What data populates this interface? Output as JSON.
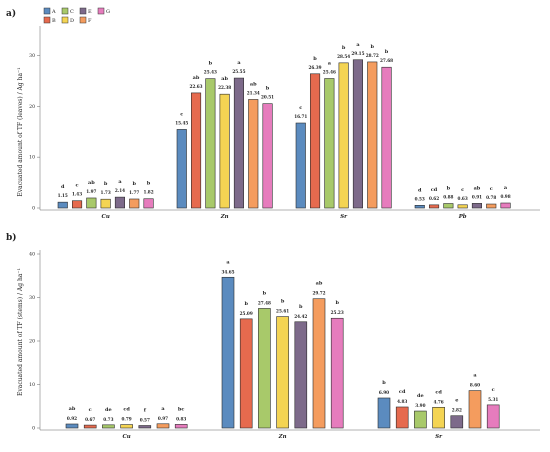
{
  "colors": {
    "A": "#5b8bbf",
    "B": "#e66a4e",
    "C": "#a8c96a",
    "D": "#f4d453",
    "E": "#7d6a8a",
    "F": "#f49c5e",
    "G": "#e67cbd"
  },
  "legend": [
    "A",
    "B",
    "C",
    "D",
    "E",
    "F",
    "G"
  ],
  "chart_data": [
    {
      "type": "bar",
      "panel_label": "a)",
      "ylabel": "Evacuated amount of TF (leaves) / Ag ha⁻¹",
      "ylim": [
        0,
        35
      ],
      "yticks": [
        "0",
        "10",
        "20",
        "30"
      ],
      "categories": [
        "Cu",
        "Zn",
        "Sr",
        "Pb"
      ],
      "series": [
        {
          "name": "A",
          "values": [
            1.15,
            15.45,
            16.71,
            0.53
          ],
          "letters": [
            "d",
            "c",
            "c",
            "d"
          ]
        },
        {
          "name": "B",
          "values": [
            1.43,
            22.63,
            26.39,
            0.62
          ],
          "letters": [
            "c",
            "ab",
            "b",
            "cd"
          ]
        },
        {
          "name": "C",
          "values": [
            1.97,
            25.43,
            25.46,
            0.88
          ],
          "letters": [
            "ab",
            "b",
            "a",
            "b"
          ]
        },
        {
          "name": "D",
          "values": [
            1.73,
            22.38,
            28.54,
            0.63
          ],
          "letters": [
            "b",
            "ab",
            "b",
            "c"
          ]
        },
        {
          "name": "E",
          "values": [
            2.14,
            25.55,
            29.15,
            0.91
          ],
          "letters": [
            "a",
            "a",
            "a",
            "ab"
          ]
        },
        {
          "name": "F",
          "values": [
            1.77,
            21.34,
            28.72,
            0.78
          ],
          "letters": [
            "b",
            "ab",
            "b",
            "c"
          ]
        },
        {
          "name": "G",
          "values": [
            1.82,
            20.51,
            27.68,
            0.98
          ],
          "letters": [
            "b",
            "b",
            "b",
            "a"
          ]
        }
      ],
      "value_labels": [
        [
          "1.15",
          "15.45",
          "16.71",
          "0.53"
        ],
        [
          "1.43",
          "22.63",
          "26.39",
          "0.62"
        ],
        [
          "1.97",
          "25.43",
          "25.46",
          "0.88"
        ],
        [
          "1.73",
          "22.38",
          "28.54",
          "0.63"
        ],
        [
          "2.14",
          "25.55",
          "29.15",
          "0.91"
        ],
        [
          "1.77",
          "21.34",
          "28.72",
          "0.78"
        ],
        [
          "1.82",
          "20.51",
          "27.68",
          "0.98"
        ]
      ]
    },
    {
      "type": "bar",
      "panel_label": "b)",
      "ylabel": "Evacuated amount of TF (stems) / Ag ha⁻¹",
      "ylim": [
        0,
        40
      ],
      "yticks": [
        "0",
        "10",
        "20",
        "30",
        "40"
      ],
      "categories": [
        "Cu",
        "Zn",
        "Sr"
      ],
      "series": [
        {
          "name": "A",
          "values": [
            0.92,
            34.65,
            6.9
          ],
          "letters": [
            "ab",
            "a",
            "b"
          ]
        },
        {
          "name": "B",
          "values": [
            0.67,
            25.09,
            4.83
          ],
          "letters": [
            "c",
            "b",
            "cd"
          ]
        },
        {
          "name": "C",
          "values": [
            0.73,
            27.48,
            3.9
          ],
          "letters": [
            "de",
            "b",
            "de"
          ]
        },
        {
          "name": "D",
          "values": [
            0.79,
            25.61,
            4.76
          ],
          "letters": [
            "cd",
            "b",
            "cd"
          ]
        },
        {
          "name": "E",
          "values": [
            0.57,
            24.42,
            2.82
          ],
          "letters": [
            "f",
            "b",
            "e"
          ]
        },
        {
          "name": "F",
          "values": [
            0.97,
            29.72,
            8.6
          ],
          "letters": [
            "a",
            "ab",
            "a"
          ]
        },
        {
          "name": "G",
          "values": [
            0.83,
            25.23,
            5.31
          ],
          "letters": [
            "bc",
            "b",
            "c"
          ]
        }
      ],
      "value_labels": [
        [
          "0.92",
          "34.65",
          "6.90"
        ],
        [
          "0.67",
          "25.09",
          "4.83"
        ],
        [
          "0.73",
          "27.48",
          "3.90"
        ],
        [
          "0.79",
          "25.61",
          "4.76"
        ],
        [
          "0.57",
          "24.42",
          "2.82"
        ],
        [
          "0.97",
          "29.72",
          "8.60"
        ],
        [
          "0.83",
          "25.23",
          "5.31"
        ]
      ]
    }
  ]
}
